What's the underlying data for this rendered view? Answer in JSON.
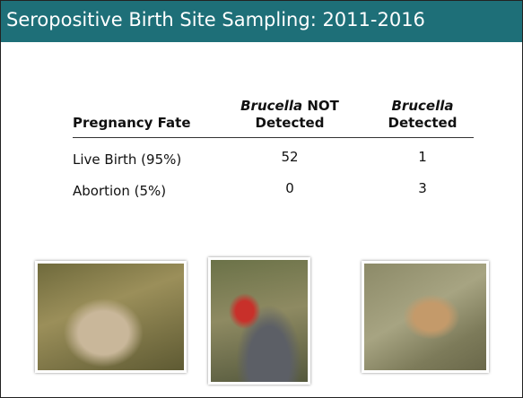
{
  "header": {
    "title": "Seropositive Birth Site Sampling: 2011-2016"
  },
  "table": {
    "columns": [
      {
        "label": "Pregnancy Fate"
      },
      {
        "organism": "Brucella",
        "qualifier": "NOT",
        "label": "Detected"
      },
      {
        "organism": "Brucella",
        "label": "Detected"
      }
    ],
    "rows": [
      [
        "Live Birth (95%)",
        "52",
        "1"
      ],
      [
        "Abortion (5%)",
        "0",
        "3"
      ]
    ]
  }
}
